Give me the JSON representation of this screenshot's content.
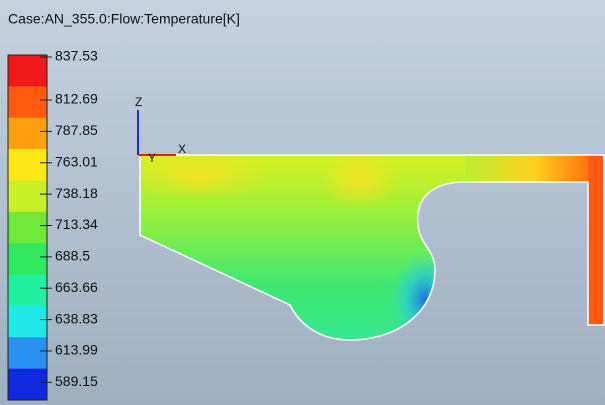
{
  "header": {
    "title": "Case:AN_355.0:Flow:Temperature[K]"
  },
  "legend": {
    "labels": [
      837.53,
      812.69,
      787.85,
      763.01,
      738.18,
      713.34,
      688.5,
      663.66,
      638.83,
      613.99,
      589.15
    ]
  },
  "triad": {
    "z": "Z",
    "x": "X",
    "y": "Y"
  }
}
